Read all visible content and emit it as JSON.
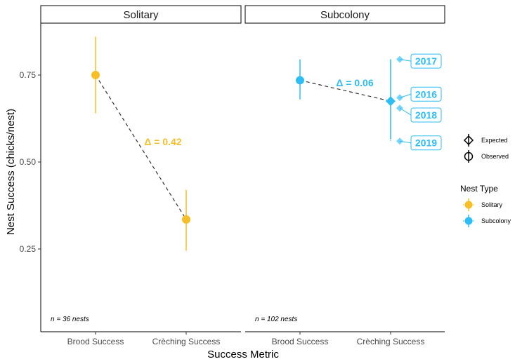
{
  "chart_data": {
    "type": "scatter",
    "ylabel": "Nest Success (chicks/nest)",
    "xlabel": "Success Metric",
    "categories": [
      "Brood Success",
      "Crèching Success"
    ],
    "yticks": [
      "0.25",
      "0.50",
      "0.75"
    ],
    "ylim": [
      0.03,
      0.92
    ],
    "panels": [
      {
        "strip": "Solitary",
        "n_label": "n = 36 nests",
        "delta_label": "Δ =  0.42",
        "color": "#F7BE28",
        "points": [
          {
            "x": "Brood Success",
            "y": 0.75,
            "lo": 0.64,
            "hi": 0.86
          },
          {
            "x": "Crèching Success",
            "y": 0.335,
            "lo": 0.245,
            "hi": 0.42
          }
        ],
        "expected": []
      },
      {
        "strip": "Subcolony",
        "n_label": "n = 102 nests",
        "delta_label": "Δ =  0.06",
        "color": "#2EBDF5",
        "points": [
          {
            "x": "Brood Success",
            "y": 0.735,
            "lo": 0.68,
            "hi": 0.795
          },
          {
            "x": "Crèching Success",
            "y": 0.675,
            "lo": 0.565,
            "hi": 0.795
          }
        ],
        "expected": [
          {
            "label": "2017",
            "y": 0.795,
            "label_y": 0.79
          },
          {
            "label": "2016",
            "y": 0.685,
            "label_y": 0.695
          },
          {
            "label": "2018",
            "y": 0.655,
            "label_y": 0.635
          },
          {
            "label": "2019",
            "y": 0.56,
            "label_y": 0.555
          }
        ]
      }
    ],
    "legend": {
      "shape_items": [
        "Expected",
        "Observed"
      ],
      "color_title": "Nest Type",
      "color_items": [
        {
          "name": "Solitary",
          "color": "#F7BE28"
        },
        {
          "name": "Subcolony",
          "color": "#2EBDF5"
        }
      ]
    }
  }
}
